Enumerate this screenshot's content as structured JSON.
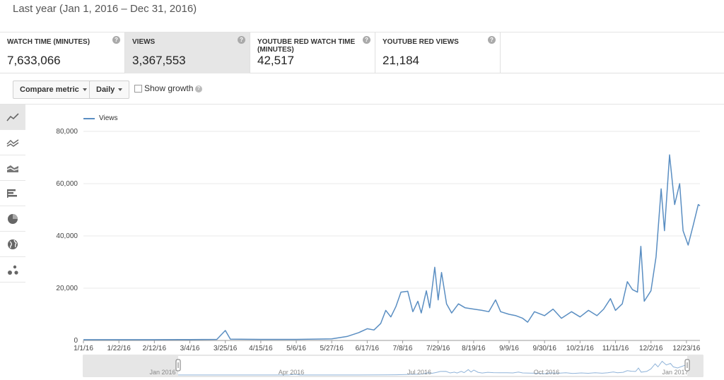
{
  "header": {
    "date_range": "Last year (Jan 1, 2016 – Dec 31, 2016)"
  },
  "metrics": [
    {
      "label": "WATCH TIME (MINUTES)",
      "value": "7,633,066",
      "selected": false
    },
    {
      "label": "VIEWS",
      "value": "3,367,553",
      "selected": true
    },
    {
      "label": "YOUTUBE RED WATCH TIME (MINUTES)",
      "value": "42,517",
      "selected": false
    },
    {
      "label": "YOUTUBE RED VIEWS",
      "value": "21,184",
      "selected": false
    }
  ],
  "toolbar": {
    "compare_metric": "Compare metric",
    "granularity": "Daily",
    "show_growth": "Show growth",
    "show_growth_checked": false
  },
  "sidebar": {
    "icons": [
      "line-chart-icon",
      "multiline-chart-icon",
      "stacked-area-icon",
      "bar-chart-icon",
      "pie-chart-icon",
      "globe-map-icon",
      "bubble-chart-icon"
    ]
  },
  "chart_data": {
    "type": "line",
    "series": [
      {
        "name": "Views",
        "color": "#5a8ec2",
        "points": [
          [
            "1/1/16",
            300
          ],
          [
            "1/22/16",
            300
          ],
          [
            "2/12/16",
            300
          ],
          [
            "3/4/16",
            350
          ],
          [
            "3/20/16",
            400
          ],
          [
            "3/25/16",
            3800
          ],
          [
            "3/28/16",
            500
          ],
          [
            "4/15/16",
            400
          ],
          [
            "5/6/16",
            400
          ],
          [
            "5/27/16",
            600
          ],
          [
            "6/5/16",
            1500
          ],
          [
            "6/12/16",
            3000
          ],
          [
            "6/17/16",
            4500
          ],
          [
            "6/21/16",
            4000
          ],
          [
            "6/25/16",
            6500
          ],
          [
            "6/28/16",
            11500
          ],
          [
            "7/1/16",
            9000
          ],
          [
            "7/4/16",
            13000
          ],
          [
            "7/7/16",
            18500
          ],
          [
            "7/11/16",
            18800
          ],
          [
            "7/14/16",
            11000
          ],
          [
            "7/17/16",
            15000
          ],
          [
            "7/19/16",
            10500
          ],
          [
            "7/22/16",
            19000
          ],
          [
            "7/24/16",
            12500
          ],
          [
            "7/27/16",
            28000
          ],
          [
            "7/29/16",
            15500
          ],
          [
            "7/31/16",
            26000
          ],
          [
            "8/3/16",
            14000
          ],
          [
            "8/6/16",
            10500
          ],
          [
            "8/10/16",
            14000
          ],
          [
            "8/14/16",
            12500
          ],
          [
            "8/19/16",
            12000
          ],
          [
            "8/24/16",
            11500
          ],
          [
            "8/28/16",
            11000
          ],
          [
            "9/1/16",
            15500
          ],
          [
            "9/4/16",
            11000
          ],
          [
            "9/9/16",
            10000
          ],
          [
            "9/13/16",
            9500
          ],
          [
            "9/17/16",
            8500
          ],
          [
            "9/20/16",
            7000
          ],
          [
            "9/24/16",
            11000
          ],
          [
            "9/30/16",
            9500
          ],
          [
            "10/5/16",
            12000
          ],
          [
            "10/10/16",
            8500
          ],
          [
            "10/16/16",
            11000
          ],
          [
            "10/21/16",
            9000
          ],
          [
            "10/26/16",
            11500
          ],
          [
            "10/31/16",
            9500
          ],
          [
            "11/4/16",
            12000
          ],
          [
            "11/8/16",
            16000
          ],
          [
            "11/11/16",
            11500
          ],
          [
            "11/15/16",
            14000
          ],
          [
            "11/18/16",
            22500
          ],
          [
            "11/21/16",
            19500
          ],
          [
            "11/24/16",
            18500
          ],
          [
            "11/26/16",
            36000
          ],
          [
            "11/28/16",
            15000
          ],
          [
            "12/2/16",
            19000
          ],
          [
            "12/5/16",
            32000
          ],
          [
            "12/8/16",
            58000
          ],
          [
            "12/10/16",
            42000
          ],
          [
            "12/13/16",
            71000
          ],
          [
            "12/16/16",
            52000
          ],
          [
            "12/19/16",
            60000
          ],
          [
            "12/21/16",
            42000
          ],
          [
            "12/24/16",
            36500
          ],
          [
            "12/27/16",
            44000
          ],
          [
            "12/30/16",
            52000
          ],
          [
            "12/31/16",
            51500
          ]
        ]
      }
    ],
    "x_ticks": [
      "1/1/16",
      "1/22/16",
      "2/12/16",
      "3/4/16",
      "3/25/16",
      "4/15/16",
      "5/6/16",
      "5/27/16",
      "6/17/16",
      "7/8/16",
      "7/29/16",
      "8/19/16",
      "9/9/16",
      "9/30/16",
      "10/21/16",
      "11/11/16",
      "12/2/16",
      "12/23/16"
    ],
    "y_ticks": [
      "0",
      "20,000",
      "40,000",
      "60,000",
      "80,000"
    ],
    "ylim": [
      0,
      80000
    ],
    "xlim": [
      "1/1/16",
      "12/31/16"
    ],
    "grid": true,
    "legend_position": "top-left",
    "navigator_labels": [
      "Jan 2016",
      "Apr 2016",
      "Jul 2016",
      "Oct 2016",
      "Jan 2017"
    ]
  }
}
